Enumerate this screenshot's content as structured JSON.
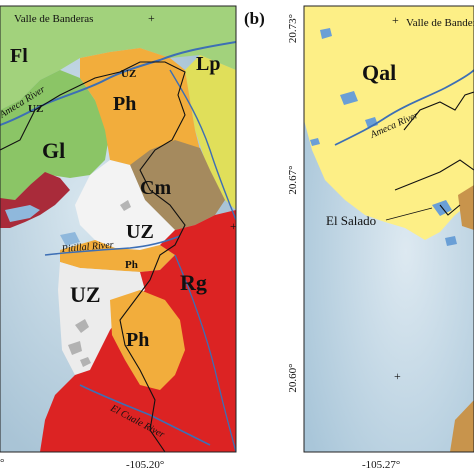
{
  "panel_a": {
    "place_label": "Valle de Banderas",
    "units": {
      "fl": "Fl",
      "lp": "Lp",
      "uz_top": "UZ",
      "uz_left": "UZ",
      "ph_top": "Ph",
      "gl": "Gl",
      "cm": "Cm",
      "uz_mid": "UZ",
      "ph_small": "Ph",
      "uz_big": "UZ",
      "rg": "Rg",
      "ph_bottom": "Ph"
    },
    "rivers": {
      "ameca": "Ameca River",
      "pitillal": "Pitillal River",
      "cuale": "El Cuale River"
    },
    "lon_label": "-105.20°",
    "left_lon_label": "°",
    "colors": {
      "Fl": "#9fd07a",
      "Lp": "#e2e05a",
      "Ph": "#f2ad3c",
      "Gl": "#8cc66a",
      "Cm": "#a0855a",
      "UZ": "#f2f2f2",
      "Rg": "#dd2424",
      "water": "#8fb8dc",
      "river": "#3d6fb5"
    }
  },
  "panel_b": {
    "panel_letter": "(b)",
    "place_label": "Valle de Banderas",
    "unit": "Qal",
    "river": "Ameca River",
    "el_salado": "El Salado",
    "lat_top": "20.73°",
    "lat_mid": "20.67°",
    "lat_bot": "20.60°",
    "lon_label": "-105.27°",
    "colors": {
      "Qal": "#fdef86",
      "sea": "#b8d2e2",
      "water": "#6a9fd6",
      "rock": "#c8944c"
    }
  }
}
